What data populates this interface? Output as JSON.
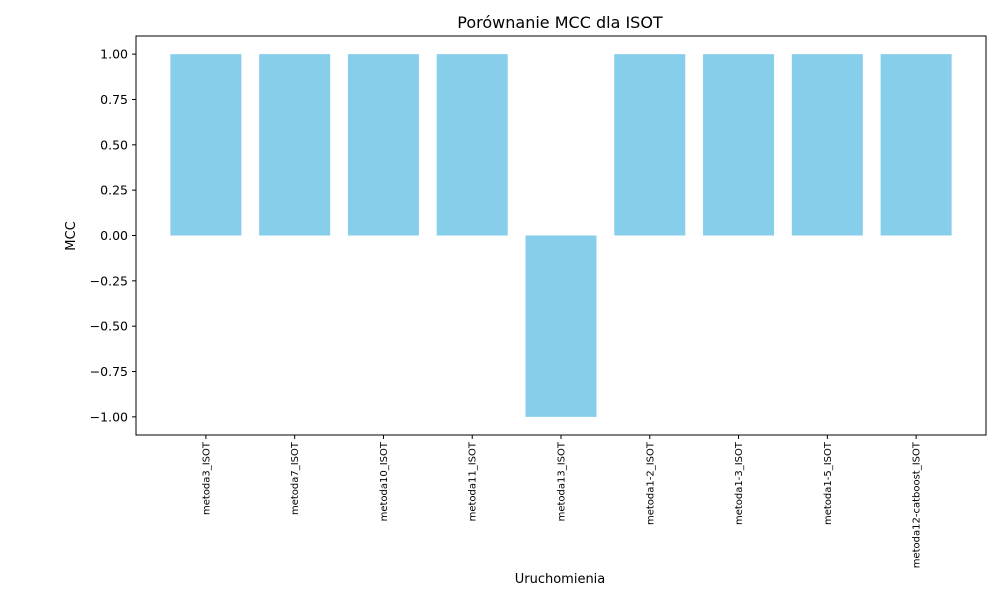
{
  "chart_data": {
    "type": "bar",
    "title": "Porównanie MCC dla ISOT",
    "xlabel": "Uruchomienia",
    "ylabel": "MCC",
    "categories": [
      "metoda3_ISOT",
      "metoda7_ISOT",
      "metoda10_ISOT",
      "metoda11_ISOT",
      "metoda13_ISOT",
      "metoda1-2_ISOT",
      "metoda1-3_ISOT",
      "metoda1-5_ISOT",
      "metoda12-catboost_ISOT"
    ],
    "values": [
      1.0,
      1.0,
      1.0,
      1.0,
      -1.0,
      1.0,
      1.0,
      1.0,
      1.0
    ],
    "ylim": [
      -1.1,
      1.1
    ],
    "yticks": [
      1.0,
      0.75,
      0.5,
      0.25,
      0.0,
      -0.25,
      -0.5,
      -0.75,
      -1.0
    ],
    "ytick_labels": [
      "1.00",
      "0.75",
      "0.50",
      "0.25",
      "0.00",
      "−0.25",
      "−0.50",
      "−0.75",
      "−1.00"
    ],
    "bar_color": "#87ceeb",
    "grid": false,
    "x_tick_rotation": "vertical"
  }
}
